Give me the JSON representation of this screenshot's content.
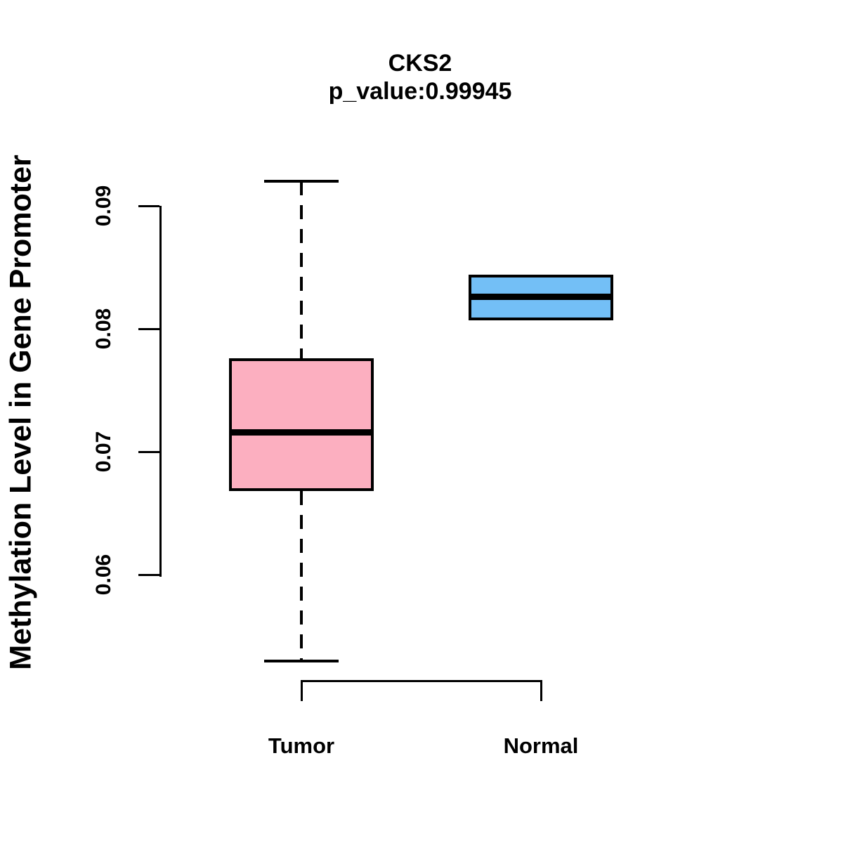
{
  "chart_data": {
    "type": "boxplot",
    "title": "CKS2",
    "subtitle": "p_value:0.99945",
    "ylabel": "Methylation Level in Gene Promoter",
    "xlabel": "",
    "categories": [
      "Tumor",
      "Normal"
    ],
    "ylim": [
      0.053,
      0.092
    ],
    "yticks": [
      {
        "value": 0.06,
        "label": "0.06"
      },
      {
        "value": 0.07,
        "label": "0.07"
      },
      {
        "value": 0.08,
        "label": "0.08"
      },
      {
        "value": 0.09,
        "label": "0.09"
      }
    ],
    "grid": false,
    "legend": "none",
    "series": [
      {
        "name": "Tumor",
        "color": "#FCAFC0",
        "lower_whisker": 0.053,
        "q1": 0.0668,
        "median": 0.0716,
        "q3": 0.0776,
        "upper_whisker": 0.092,
        "whisker_style": "dashed"
      },
      {
        "name": "Normal",
        "color": "#73BFF6",
        "lower_whisker": 0.0807,
        "q1": 0.0807,
        "median": 0.0826,
        "q3": 0.0844,
        "upper_whisker": 0.0844,
        "whisker_style": "dashed"
      }
    ],
    "colors": {
      "stroke": "#000000",
      "background": "#FFFFFF",
      "tumor_fill": "#FCAFC0",
      "normal_fill": "#73BFF6"
    }
  }
}
